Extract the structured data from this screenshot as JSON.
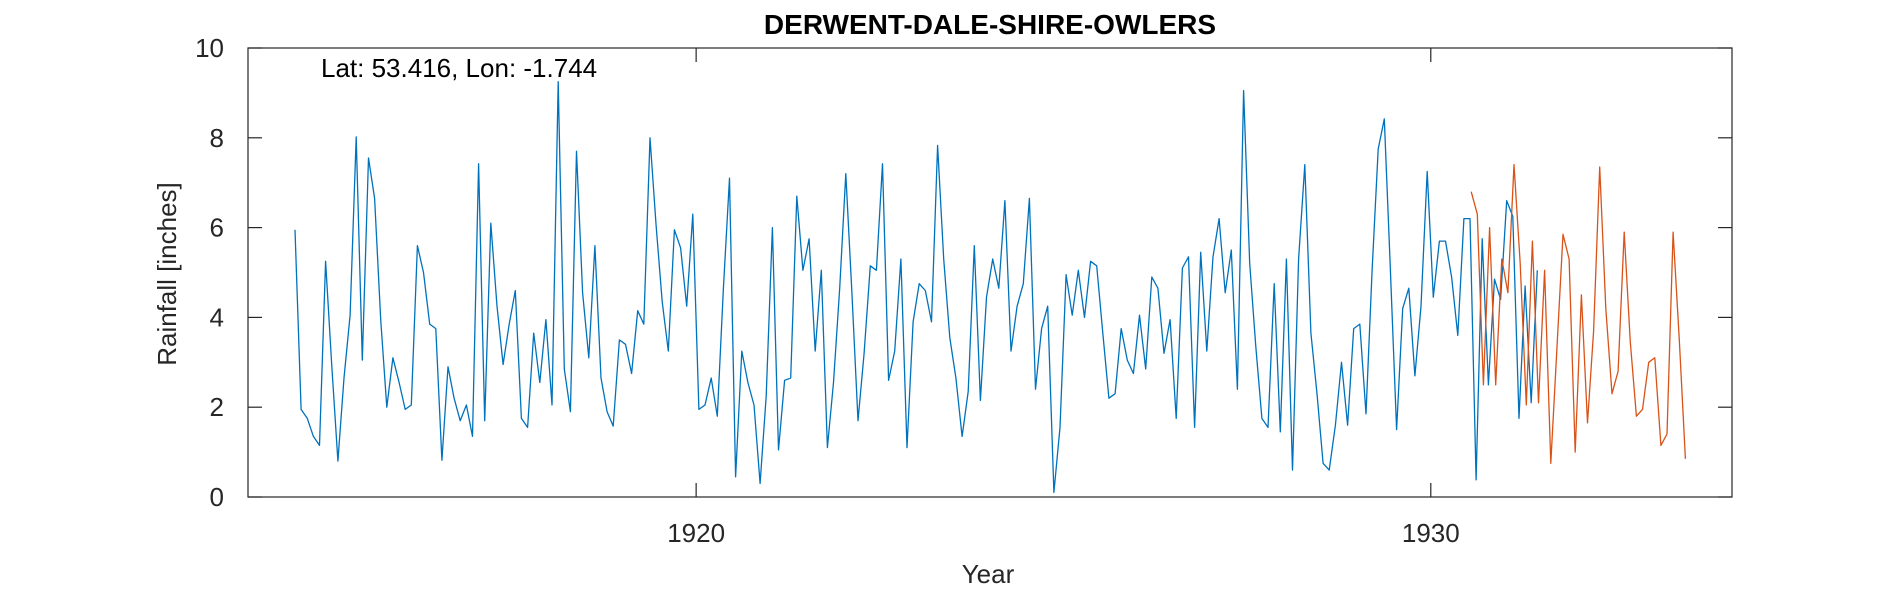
{
  "chart_data": {
    "type": "line",
    "title": "DERWENT-DALE-SHIRE-OWLERS",
    "annotation": "Lat: 53.416, Lon: -1.744",
    "xlabel": "Year",
    "ylabel": "Rainfall [inches]",
    "xlim": [
      1913.9,
      1934.1
    ],
    "ylim": [
      0,
      10
    ],
    "xticks": [
      1920,
      1930
    ],
    "yticks": [
      0,
      2,
      4,
      6,
      8,
      10
    ],
    "grid": false,
    "colors": {
      "observed": "#0072BD",
      "predicted": "#D95319",
      "axis": "#262626"
    },
    "series": [
      {
        "x_start": 1914.54,
        "x_step": 0.0833,
        "values": [
          5.95,
          1.95,
          1.75,
          1.35,
          1.15,
          5.25,
          2.95,
          0.8,
          2.65,
          4.05,
          8.02,
          3.05,
          7.55,
          6.65,
          3.95,
          2.0,
          3.1,
          2.55,
          1.95,
          2.05,
          5.6,
          5.0,
          3.85,
          3.75,
          0.82,
          2.9,
          2.2,
          1.7,
          2.05,
          1.35,
          7.42,
          1.7,
          6.1,
          4.25,
          2.95,
          3.85,
          4.6,
          1.75,
          1.55,
          3.65,
          2.55,
          3.95,
          2.05,
          9.25,
          2.85,
          1.9,
          7.7,
          4.55,
          3.1,
          5.6,
          2.65,
          1.9,
          1.58,
          3.5,
          3.4,
          2.75,
          4.15,
          3.85,
          8.0,
          6.05,
          4.35,
          3.25,
          5.95,
          5.55,
          4.25,
          6.3,
          1.95,
          2.05,
          2.65,
          1.8,
          4.65,
          7.1,
          0.45,
          3.25,
          2.55,
          2.05,
          0.3,
          2.25,
          6.0,
          1.05,
          2.6,
          2.65,
          6.7,
          5.05,
          5.75,
          3.25,
          5.05,
          1.1,
          2.55,
          4.65,
          7.2,
          4.55,
          1.7,
          3.2,
          5.15,
          5.05,
          7.42,
          2.6,
          3.25,
          5.3,
          1.1,
          3.9,
          4.75,
          4.6,
          3.9,
          7.83,
          5.3,
          3.55,
          2.65,
          1.35,
          2.35,
          5.6,
          2.15,
          4.45,
          5.3,
          4.65,
          6.6,
          3.25,
          4.25,
          4.75,
          6.65,
          2.4,
          3.75,
          4.25,
          0.1,
          1.55,
          4.95,
          4.05,
          5.05,
          4.0,
          5.25,
          5.15,
          3.65,
          2.2,
          2.3,
          3.75,
          3.05,
          2.75,
          4.05,
          2.85,
          4.9,
          4.65,
          3.2,
          3.95,
          1.75,
          5.1,
          5.35,
          1.55,
          5.45,
          3.25,
          5.35,
          6.2,
          4.55,
          5.5,
          2.4,
          9.05,
          5.2,
          3.35,
          1.75,
          1.55,
          4.75,
          1.45,
          5.3,
          0.6,
          5.3,
          7.4,
          3.65,
          2.3,
          0.75,
          0.6,
          1.6,
          3.0,
          1.6,
          3.75,
          3.85,
          1.85,
          5.05,
          7.75,
          8.42,
          5.05,
          1.5,
          4.2,
          4.65,
          2.7,
          4.25,
          7.25,
          4.45,
          5.7,
          5.7,
          4.9,
          3.6,
          6.2,
          6.2,
          0.38,
          5.75,
          2.5,
          4.85,
          4.4,
          6.6,
          6.25,
          1.75,
          4.7,
          2.1,
          5.05
        ]
      },
      {
        "x_start": 1930.55,
        "x_step": 0.0833,
        "values": [
          6.8,
          6.3,
          2.5,
          6.0,
          2.5,
          5.3,
          4.55,
          7.4,
          5.2,
          2.05,
          5.7,
          2.1,
          5.05,
          0.75,
          3.3,
          5.85,
          5.3,
          1.0,
          4.5,
          1.65,
          3.7,
          7.35,
          4.2,
          2.3,
          2.8,
          5.9,
          3.45,
          1.8,
          1.95,
          3.0,
          3.1,
          1.15,
          1.4,
          5.9,
          3.5,
          0.85
        ]
      }
    ]
  }
}
